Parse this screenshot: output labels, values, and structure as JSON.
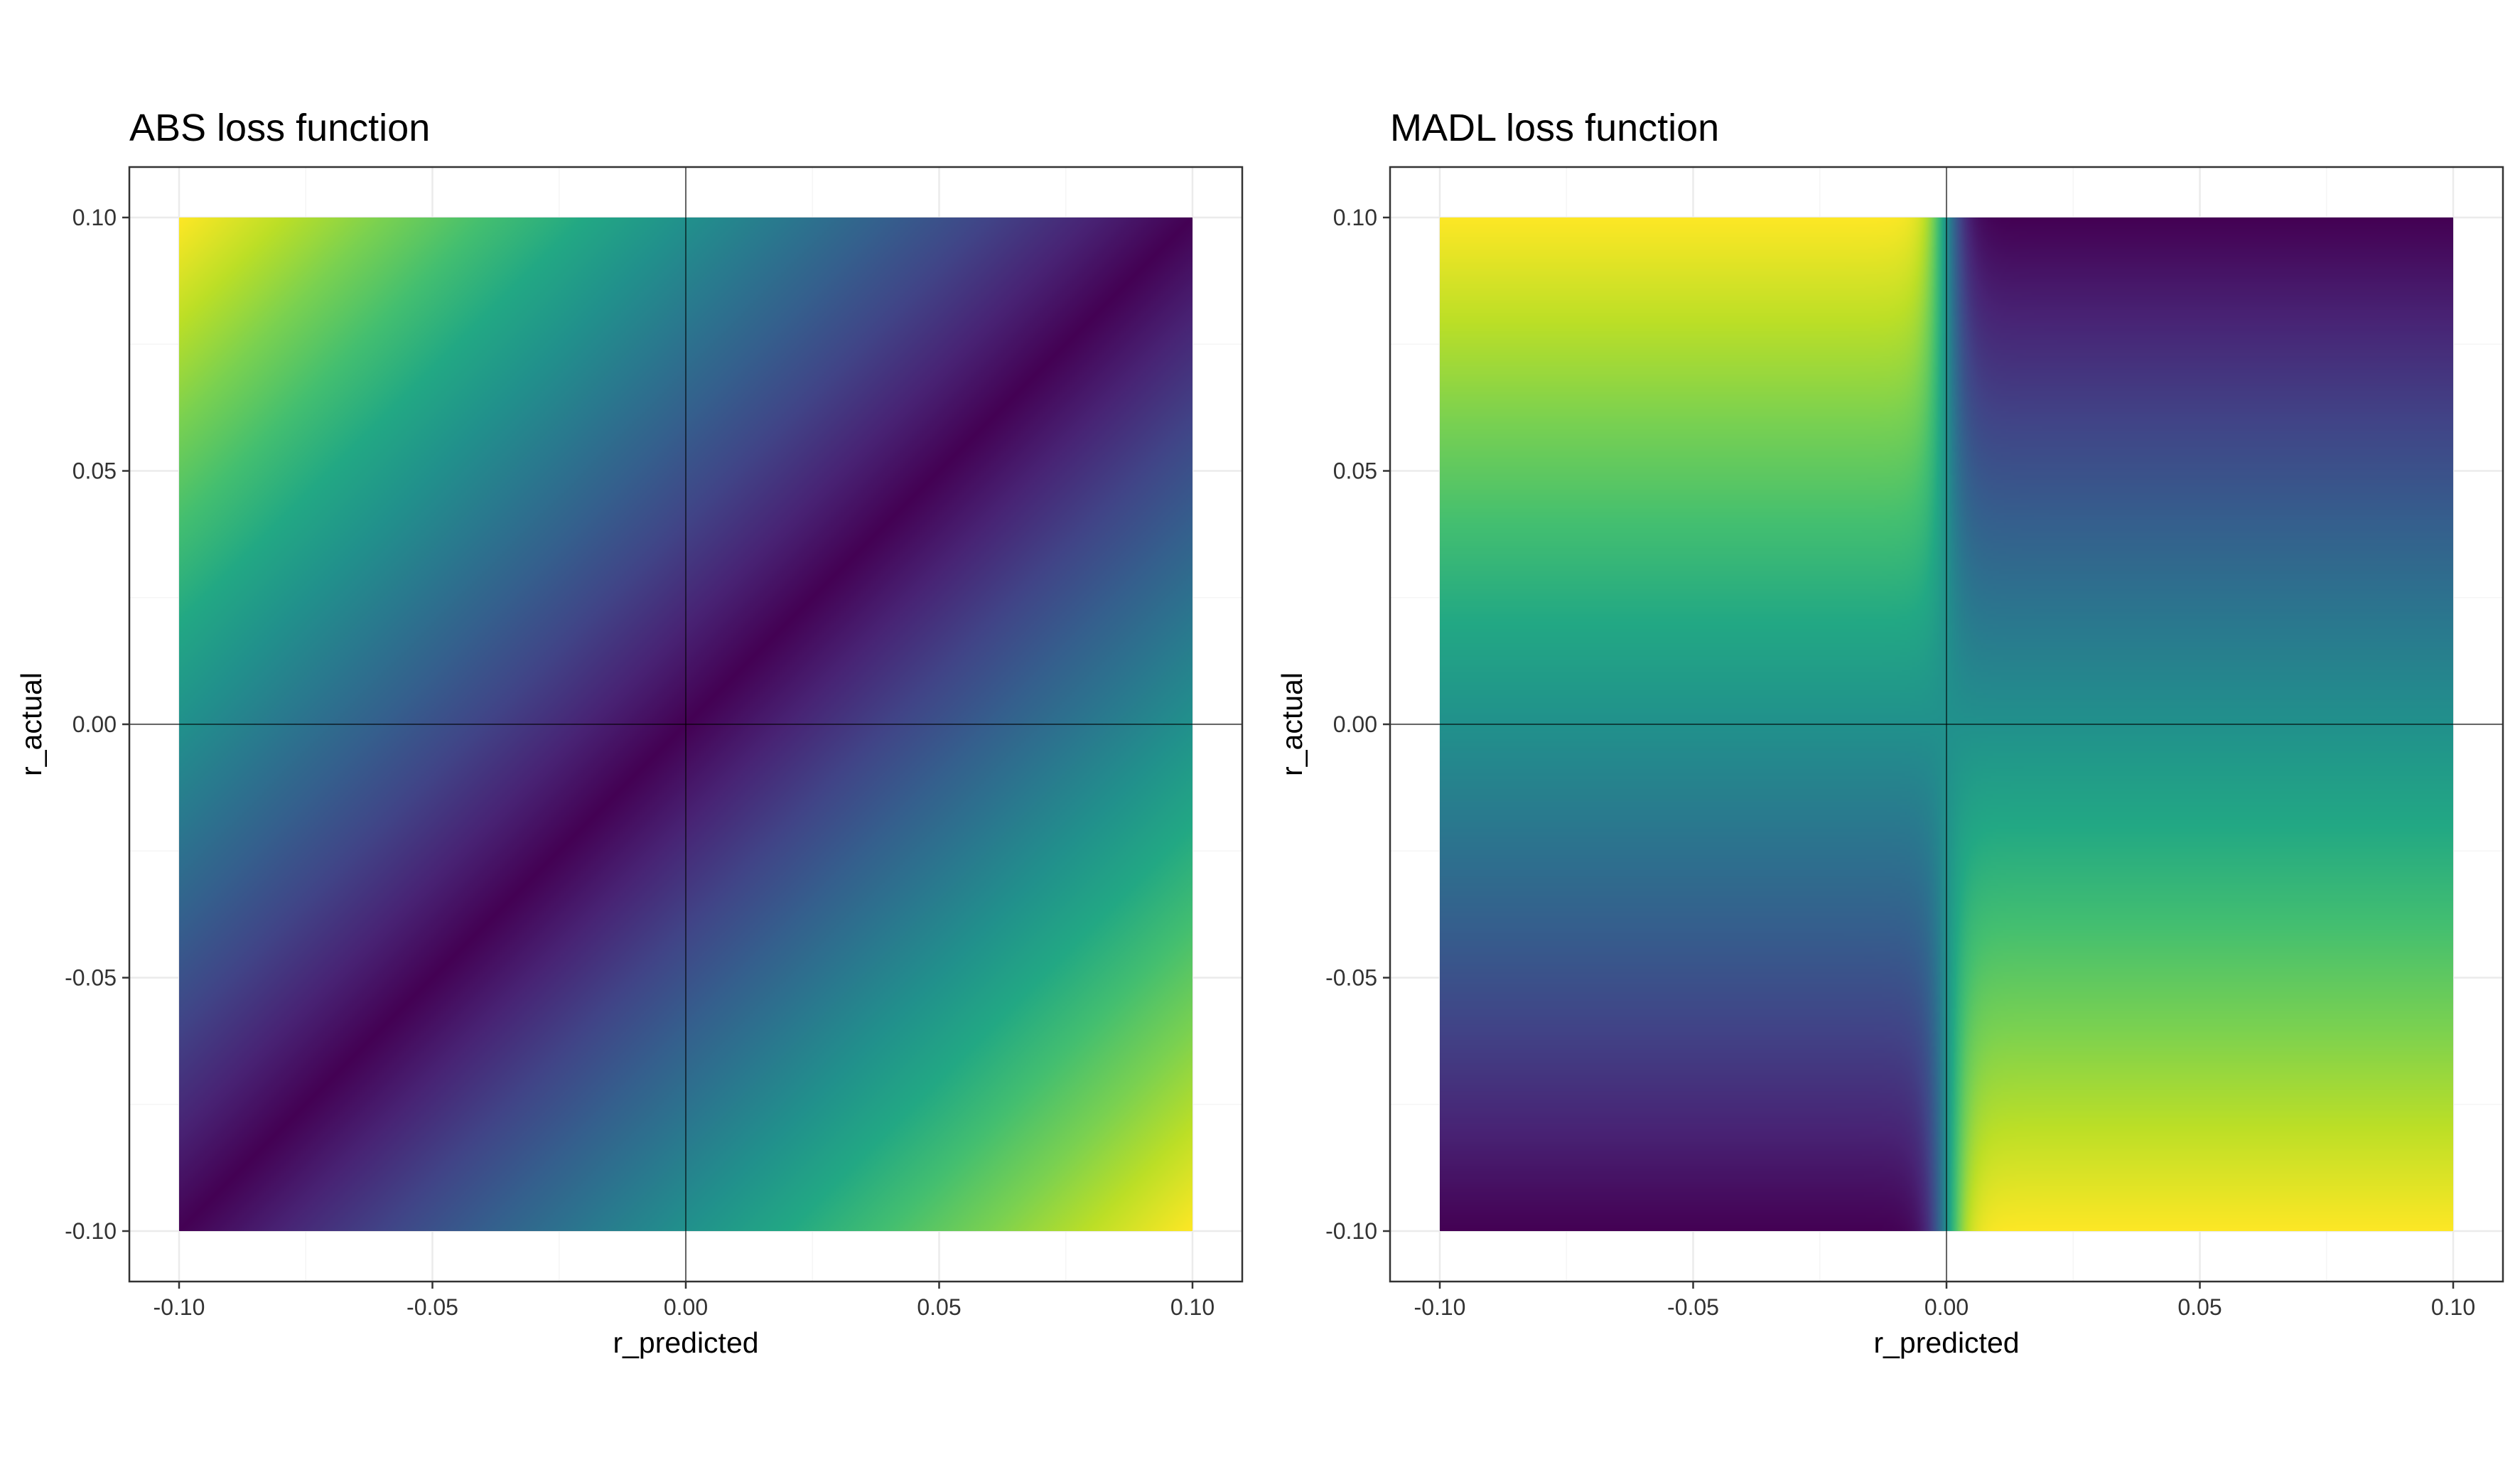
{
  "chart_data": [
    {
      "type": "heatmap",
      "title": "ABS loss function",
      "xlabel": "r_predicted",
      "ylabel": "r_actual",
      "xlim": [
        -0.1,
        0.1
      ],
      "ylim": [
        -0.1,
        0.1
      ],
      "x_ticks": [
        -0.1,
        -0.05,
        0.0,
        0.05,
        0.1
      ],
      "y_ticks": [
        -0.1,
        -0.05,
        0.0,
        0.05,
        0.1
      ],
      "x_tick_labels": [
        "-0.10",
        "-0.05",
        "0.00",
        "0.05",
        "0.10"
      ],
      "y_tick_labels": [
        "-0.10",
        "-0.05",
        "0.00",
        "0.05",
        "0.10"
      ],
      "fill_function": "|r_actual - r_predicted|",
      "colormap": "viridis",
      "grid": true,
      "reference_lines": {
        "x": 0,
        "y": 0
      },
      "legend": "none"
    },
    {
      "type": "heatmap",
      "title": "MADL loss function",
      "xlabel": "r_predicted",
      "ylabel": "r_actual",
      "xlim": [
        -0.1,
        0.1
      ],
      "ylim": [
        -0.1,
        0.1
      ],
      "x_ticks": [
        -0.1,
        -0.05,
        0.0,
        0.05,
        0.1
      ],
      "y_ticks": [
        -0.1,
        -0.05,
        0.0,
        0.05,
        0.1
      ],
      "x_tick_labels": [
        "-0.10",
        "-0.05",
        "0.00",
        "0.05",
        "0.10"
      ],
      "y_tick_labels": [
        "-0.10",
        "-0.05",
        "0.00",
        "0.05",
        "0.10"
      ],
      "fill_function": "-sign(r_actual) * |r_actual| * tanh(r_predicted)",
      "colormap": "viridis",
      "grid": true,
      "reference_lines": {
        "x": 0,
        "y": 0
      },
      "legend": "none"
    }
  ],
  "colors": {
    "background": "#ffffff",
    "panel_border": "#333333",
    "grid_major": "#ebebeb",
    "grid_minor": "#f5f5f5",
    "reference_line": "#000000"
  }
}
